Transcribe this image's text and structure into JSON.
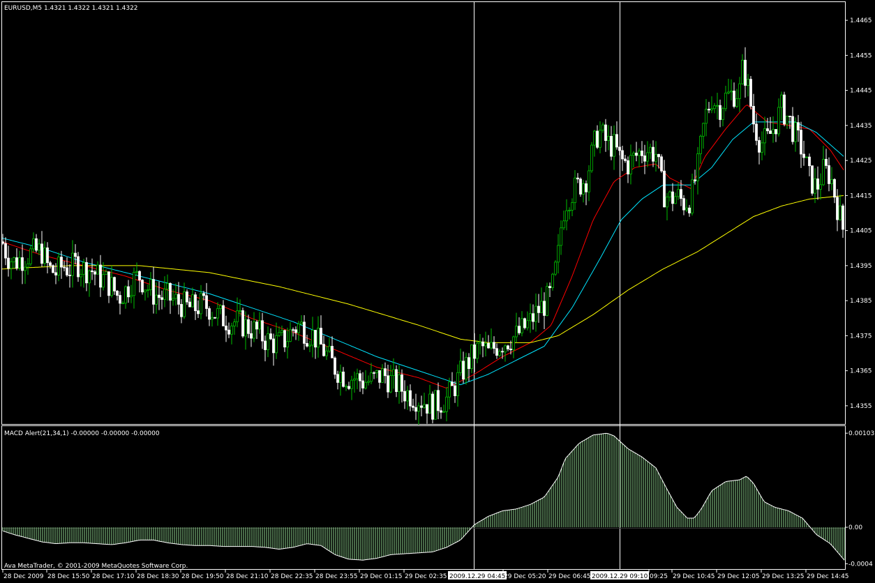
{
  "window": {
    "symbol_header": "EURUSD,M5  1.4321 1.4322 1.4321 1.4322",
    "macd_header": "MACD Alert(21,34,1) -0.00000 -0.00000 -0.00000",
    "copyright": "Ava MetaTrader, © 2001-2009 MetaQuotes Software Corp."
  },
  "price_axis": {
    "labels": [
      "1.4465",
      "1.4455",
      "1.4445",
      "1.4435",
      "1.4425",
      "1.4415",
      "1.4405",
      "1.4395",
      "1.4385",
      "1.4375",
      "1.4365",
      "1.4355"
    ]
  },
  "macd_axis": {
    "labels": [
      "0.00103",
      "0.00",
      "-0.0004"
    ]
  },
  "time_axis": {
    "labels": [
      "28 Dec 2009",
      "28 Dec 15:50",
      "28 Dec 17:10",
      "28 Dec 18:30",
      "28 Dec 19:50",
      "28 Dec 21:10",
      "28 Dec 22:35",
      "28 Dec 23:55",
      "29 Dec 01:15",
      "29 Dec 02:35",
      "29 Dec 05:20",
      "29 Dec 06:45",
      "09:25",
      "29 Dec 10:45",
      "29 Dec 12:05",
      "29 Dec 13:25",
      "29 Dec 14:45"
    ],
    "crosshair_labels": [
      "2009.12.29 04:45",
      "2009.12.29 09:10"
    ]
  },
  "colors": {
    "background": "#000000",
    "bull_candle": "#00c000",
    "bear_candle": "#ffffff",
    "ma_fast": "#ff0000",
    "ma_mid": "#00e5ff",
    "ma_slow": "#ffff00",
    "histogram": "#8fd48f",
    "grid": "#ffffff"
  },
  "chart_data": [
    {
      "type": "candlestick",
      "title": "EURUSD,M5",
      "ylim": [
        1.435,
        1.447
      ],
      "price_path": [
        [
          0,
          1.4403
        ],
        [
          5,
          1.4401
        ],
        [
          10,
          1.4398
        ],
        [
          20,
          1.4396
        ],
        [
          30,
          1.4397
        ],
        [
          40,
          1.4398
        ],
        [
          50,
          1.4399
        ],
        [
          60,
          1.4399
        ],
        [
          70,
          1.4394
        ],
        [
          80,
          1.4393
        ],
        [
          90,
          1.4395
        ],
        [
          100,
          1.4394
        ],
        [
          110,
          1.4396
        ],
        [
          120,
          1.4394
        ],
        [
          130,
          1.4394
        ],
        [
          140,
          1.4392
        ],
        [
          150,
          1.4391
        ],
        [
          160,
          1.4389
        ],
        [
          170,
          1.4386
        ],
        [
          180,
          1.4388
        ],
        [
          190,
          1.4391
        ],
        [
          200,
          1.4392
        ],
        [
          210,
          1.4389
        ],
        [
          220,
          1.4387
        ],
        [
          230,
          1.4386
        ],
        [
          240,
          1.4386
        ],
        [
          250,
          1.4385
        ],
        [
          260,
          1.4384
        ],
        [
          270,
          1.4383
        ],
        [
          280,
          1.4383
        ],
        [
          290,
          1.4384
        ],
        [
          300,
          1.4383
        ],
        [
          310,
          1.4381
        ],
        [
          320,
          1.438
        ],
        [
          330,
          1.4379
        ],
        [
          340,
          1.4379
        ],
        [
          350,
          1.4378
        ],
        [
          360,
          1.4377
        ],
        [
          370,
          1.4376
        ],
        [
          380,
          1.4374
        ],
        [
          390,
          1.4373
        ],
        [
          400,
          1.4373
        ],
        [
          410,
          1.4374
        ],
        [
          420,
          1.4377
        ],
        [
          430,
          1.4378
        ],
        [
          440,
          1.4376
        ],
        [
          450,
          1.4375
        ],
        [
          460,
          1.4372
        ],
        [
          470,
          1.4369
        ],
        [
          480,
          1.4366
        ],
        [
          490,
          1.4364
        ],
        [
          500,
          1.4363
        ],
        [
          510,
          1.4363
        ],
        [
          520,
          1.4362
        ],
        [
          530,
          1.4362
        ],
        [
          540,
          1.4363
        ],
        [
          550,
          1.4364
        ],
        [
          560,
          1.4362
        ],
        [
          570,
          1.4361
        ],
        [
          580,
          1.4359
        ],
        [
          590,
          1.4358
        ],
        [
          600,
          1.4357
        ],
        [
          610,
          1.4356
        ],
        [
          620,
          1.4355
        ],
        [
          630,
          1.4356
        ],
        [
          640,
          1.4357
        ],
        [
          650,
          1.436
        ],
        [
          660,
          1.4364
        ],
        [
          670,
          1.4367
        ],
        [
          680,
          1.437
        ],
        [
          690,
          1.4372
        ],
        [
          700,
          1.437
        ],
        [
          710,
          1.4372
        ],
        [
          720,
          1.4373
        ],
        [
          730,
          1.4374
        ],
        [
          740,
          1.4375
        ],
        [
          750,
          1.4377
        ],
        [
          760,
          1.4379
        ],
        [
          770,
          1.4382
        ],
        [
          780,
          1.4384
        ],
        [
          790,
          1.4387
        ],
        [
          800,
          1.4398
        ],
        [
          805,
          1.4408
        ],
        [
          810,
          1.4413
        ],
        [
          820,
          1.4416
        ],
        [
          830,
          1.4418
        ],
        [
          840,
          1.442
        ],
        [
          850,
          1.4428
        ],
        [
          855,
          1.4432
        ],
        [
          860,
          1.4433
        ],
        [
          870,
          1.443
        ],
        [
          880,
          1.4429
        ],
        [
          890,
          1.4425
        ],
        [
          900,
          1.4424
        ],
        [
          910,
          1.4426
        ],
        [
          920,
          1.4428
        ],
        [
          930,
          1.4428
        ],
        [
          940,
          1.4427
        ],
        [
          950,
          1.4416
        ],
        [
          960,
          1.4414
        ],
        [
          970,
          1.4415
        ],
        [
          980,
          1.4413
        ],
        [
          990,
          1.4414
        ],
        [
          1000,
          1.4423
        ],
        [
          1005,
          1.443
        ],
        [
          1010,
          1.4437
        ],
        [
          1020,
          1.4443
        ],
        [
          1030,
          1.444
        ],
        [
          1040,
          1.4443
        ],
        [
          1050,
          1.4444
        ],
        [
          1060,
          1.4445
        ],
        [
          1065,
          1.4452
        ],
        [
          1070,
          1.4448
        ],
        [
          1080,
          1.4436
        ],
        [
          1090,
          1.443
        ],
        [
          1100,
          1.4431
        ],
        [
          1110,
          1.4435
        ],
        [
          1120,
          1.444
        ],
        [
          1130,
          1.4437
        ],
        [
          1140,
          1.4432
        ],
        [
          1150,
          1.4428
        ],
        [
          1160,
          1.442
        ],
        [
          1170,
          1.4417
        ],
        [
          1180,
          1.4422
        ],
        [
          1190,
          1.4421
        ],
        [
          1200,
          1.4412
        ],
        [
          1210,
          1.4404
        ]
      ],
      "series": [
        {
          "color": "red",
          "points": [
            [
              0,
              1.4402
            ],
            [
              60,
              1.4398
            ],
            [
              120,
              1.4395
            ],
            [
              180,
              1.4392
            ],
            [
              240,
              1.4388
            ],
            [
              300,
              1.4385
            ],
            [
              360,
              1.438
            ],
            [
              420,
              1.4376
            ],
            [
              480,
              1.4371
            ],
            [
              540,
              1.4366
            ],
            [
              600,
              1.4363
            ],
            [
              640,
              1.436
            ],
            [
              680,
              1.4364
            ],
            [
              720,
              1.4369
            ],
            [
              760,
              1.4373
            ],
            [
              790,
              1.4378
            ],
            [
              820,
              1.4392
            ],
            [
              850,
              1.4408
            ],
            [
              880,
              1.4419
            ],
            [
              910,
              1.4423
            ],
            [
              940,
              1.4424
            ],
            [
              960,
              1.442
            ],
            [
              990,
              1.4417
            ],
            [
              1010,
              1.4426
            ],
            [
              1040,
              1.4434
            ],
            [
              1070,
              1.4441
            ],
            [
              1100,
              1.4436
            ],
            [
              1130,
              1.4435
            ],
            [
              1160,
              1.4434
            ],
            [
              1190,
              1.4428
            ],
            [
              1210,
              1.4422
            ]
          ]
        },
        {
          "color": "cyan",
          "points": [
            [
              0,
              1.4403
            ],
            [
              60,
              1.44
            ],
            [
              120,
              1.4396
            ],
            [
              180,
              1.4393
            ],
            [
              240,
              1.439
            ],
            [
              300,
              1.4387
            ],
            [
              360,
              1.4383
            ],
            [
              420,
              1.4379
            ],
            [
              480,
              1.4374
            ],
            [
              540,
              1.4369
            ],
            [
              600,
              1.4365
            ],
            [
              660,
              1.4361
            ],
            [
              700,
              1.4364
            ],
            [
              740,
              1.4368
            ],
            [
              780,
              1.4372
            ],
            [
              820,
              1.4383
            ],
            [
              860,
              1.4397
            ],
            [
              890,
              1.4408
            ],
            [
              920,
              1.4414
            ],
            [
              950,
              1.4418
            ],
            [
              990,
              1.4418
            ],
            [
              1020,
              1.4423
            ],
            [
              1050,
              1.4431
            ],
            [
              1080,
              1.4436
            ],
            [
              1110,
              1.4436
            ],
            [
              1140,
              1.4436
            ],
            [
              1170,
              1.4433
            ],
            [
              1210,
              1.4426
            ]
          ]
        },
        {
          "color": "yellow",
          "points": [
            [
              0,
              1.4394
            ],
            [
              100,
              1.4395
            ],
            [
              200,
              1.4395
            ],
            [
              300,
              1.4393
            ],
            [
              400,
              1.4389
            ],
            [
              500,
              1.4384
            ],
            [
              600,
              1.4378
            ],
            [
              660,
              1.4374
            ],
            [
              700,
              1.4373
            ],
            [
              760,
              1.4373
            ],
            [
              800,
              1.4375
            ],
            [
              850,
              1.4381
            ],
            [
              900,
              1.4388
            ],
            [
              950,
              1.4394
            ],
            [
              1000,
              1.4399
            ],
            [
              1040,
              1.4404
            ],
            [
              1080,
              1.4409
            ],
            [
              1120,
              1.4412
            ],
            [
              1160,
              1.4414
            ],
            [
              1210,
              1.4415
            ]
          ]
        }
      ]
    },
    {
      "type": "bar",
      "title": "MACD Alert(21,34,1)",
      "ylim": [
        -0.00045,
        0.0011
      ],
      "macd_path": [
        [
          0,
          -3e-05
        ],
        [
          20,
          -8e-05
        ],
        [
          40,
          -0.00012
        ],
        [
          60,
          -0.00016
        ],
        [
          80,
          -0.00018
        ],
        [
          100,
          -0.00017
        ],
        [
          120,
          -0.00017
        ],
        [
          140,
          -0.00018
        ],
        [
          160,
          -0.00019
        ],
        [
          180,
          -0.00017
        ],
        [
          200,
          -0.00014
        ],
        [
          220,
          -0.00014
        ],
        [
          240,
          -0.00017
        ],
        [
          260,
          -0.00019
        ],
        [
          280,
          -0.0002
        ],
        [
          300,
          -0.0002
        ],
        [
          320,
          -0.00021
        ],
        [
          340,
          -0.00021
        ],
        [
          360,
          -0.00021
        ],
        [
          380,
          -0.00022
        ],
        [
          400,
          -0.00024
        ],
        [
          420,
          -0.00022
        ],
        [
          440,
          -0.00018
        ],
        [
          460,
          -0.0002
        ],
        [
          480,
          -0.0003
        ],
        [
          500,
          -0.00035
        ],
        [
          520,
          -0.00036
        ],
        [
          540,
          -0.00034
        ],
        [
          560,
          -0.0003
        ],
        [
          580,
          -0.00029
        ],
        [
          600,
          -0.00028
        ],
        [
          620,
          -0.00027
        ],
        [
          640,
          -0.00022
        ],
        [
          660,
          -0.00014
        ],
        [
          680,
          3e-05
        ],
        [
          700,
          0.00012
        ],
        [
          720,
          0.00018
        ],
        [
          740,
          0.0002
        ],
        [
          760,
          0.00025
        ],
        [
          780,
          0.00033
        ],
        [
          800,
          0.00055
        ],
        [
          810,
          0.00075
        ],
        [
          830,
          0.00092
        ],
        [
          850,
          0.00101
        ],
        [
          870,
          0.00103
        ],
        [
          880,
          0.001
        ],
        [
          900,
          0.00086
        ],
        [
          920,
          0.00077
        ],
        [
          940,
          0.00065
        ],
        [
          955,
          0.00043
        ],
        [
          970,
          0.00022
        ],
        [
          985,
          0.0001
        ],
        [
          995,
          0.0001
        ],
        [
          1005,
          0.0002
        ],
        [
          1020,
          0.0004
        ],
        [
          1040,
          0.0005
        ],
        [
          1060,
          0.00052
        ],
        [
          1070,
          0.00056
        ],
        [
          1080,
          0.00048
        ],
        [
          1095,
          0.00028
        ],
        [
          1110,
          0.00022
        ],
        [
          1130,
          0.00018
        ],
        [
          1150,
          0.0001
        ],
        [
          1170,
          -8e-05
        ],
        [
          1190,
          -0.00018
        ],
        [
          1210,
          -0.00036
        ]
      ]
    }
  ]
}
